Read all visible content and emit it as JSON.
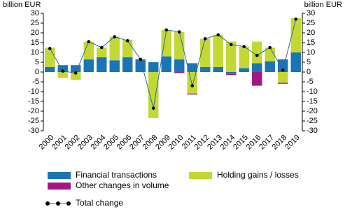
{
  "chart_data": {
    "type": "bar",
    "y_label": "billion EUR",
    "y2_label": "billion EUR",
    "categories": [
      "2000",
      "2001",
      "2002",
      "2003",
      "2004",
      "2005",
      "2006",
      "2007",
      "2008",
      "2009",
      "2010",
      "2011",
      "2012",
      "2013",
      "2014",
      "2015",
      "2016",
      "2017",
      "2018",
      "2019"
    ],
    "ylim": [
      -30,
      30
    ],
    "yticks": [
      -30,
      -25,
      -20,
      -15,
      -10,
      -5,
      0,
      5,
      10,
      15,
      20,
      25,
      30
    ],
    "y2lim": [
      -30,
      30
    ],
    "y2ticks": [
      -30,
      -25,
      -20,
      -15,
      -10,
      -5,
      0,
      5,
      10,
      15,
      20,
      25,
      30
    ],
    "series": [
      {
        "name": "Financial transactions",
        "color": "#1a75b5",
        "values": [
          2.5,
          3.5,
          3.5,
          6.5,
          7.5,
          6,
          7.5,
          6.5,
          5,
          8,
          6.5,
          4.5,
          2.5,
          2.5,
          -1,
          2,
          4.5,
          5.5,
          6.5,
          10
        ]
      },
      {
        "name": "Holding gains / losses",
        "color": "#c3d834",
        "values": [
          10,
          -3,
          -4,
          9,
          5,
          12,
          9,
          0,
          -23.5,
          13.5,
          14,
          -11,
          14.5,
          16.5,
          15.5,
          11,
          11,
          7,
          -5.5,
          17.5
        ]
      },
      {
        "name": "Other changes in volume",
        "color": "#a3187f",
        "values": [
          0,
          0,
          0,
          0,
          0,
          0,
          0,
          0,
          0,
          0,
          -0.5,
          -0.5,
          0,
          0,
          -0.5,
          0,
          -7,
          0,
          -0.5,
          0
        ]
      },
      {
        "name": "Total change",
        "type": "line",
        "color": "#2a6a9a",
        "values": [
          12,
          0.5,
          -0.5,
          15.5,
          12.5,
          18,
          16,
          6.5,
          -18.5,
          21.5,
          20.5,
          -7,
          17,
          19,
          14,
          13,
          8.5,
          12.5,
          1,
          27
        ]
      }
    ]
  }
}
